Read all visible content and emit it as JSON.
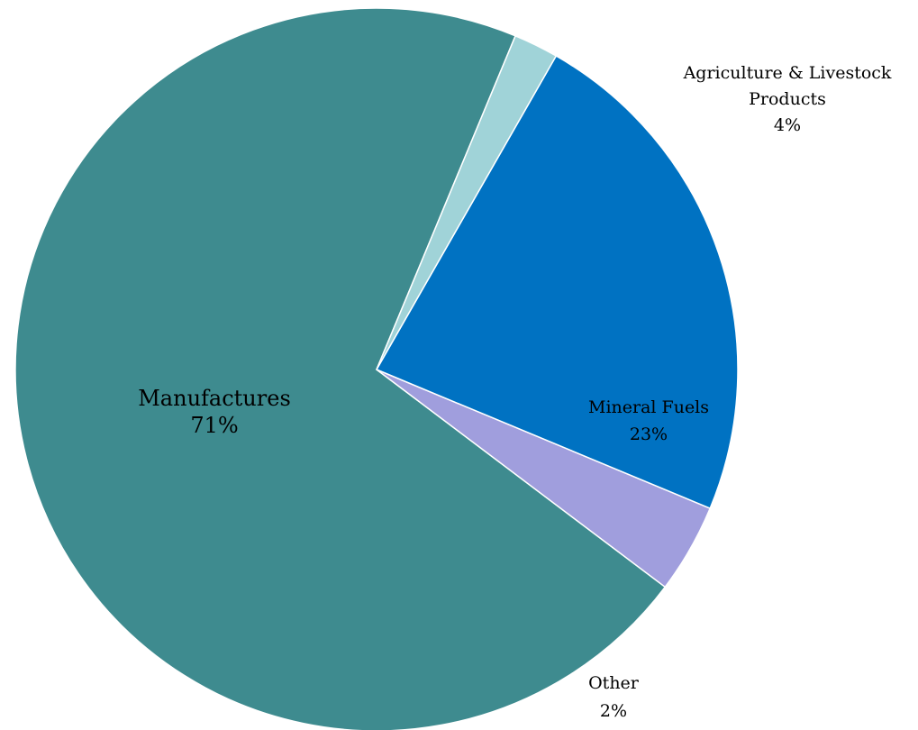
{
  "chart_data": {
    "type": "pie",
    "title": "",
    "slices": [
      {
        "label": "Manufactures",
        "value": 71,
        "value_label": "71%",
        "color": "#3e8b8f"
      },
      {
        "label": "Agriculture & Livestock Products",
        "label_lines": [
          "Agriculture & Livestock",
          "Products"
        ],
        "value": 4,
        "value_label": "4%",
        "color": "#a09edd"
      },
      {
        "label": "Mineral Fuels",
        "value": 23,
        "value_label": "23%",
        "color": "#0072c2"
      },
      {
        "label": "Other",
        "value": 2,
        "value_label": "2%",
        "color": "#a0d3d8"
      }
    ]
  }
}
